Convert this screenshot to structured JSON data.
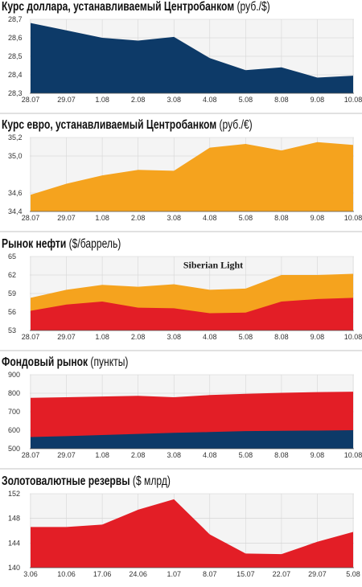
{
  "chart_data": [
    {
      "type": "area",
      "title": "Курс доллара, устанавливаемый Центробанком",
      "unit": "(руб./$)",
      "categories": [
        "28.07",
        "29.07",
        "1.08",
        "2.08",
        "3.08",
        "4.08",
        "5.08",
        "8.08",
        "9.08",
        "10.08"
      ],
      "yticks": [
        "28,3",
        "28,4",
        "28,5",
        "28,6",
        "28,7"
      ],
      "ylim": [
        28.3,
        28.7
      ],
      "series": [
        {
          "values": [
            28.68,
            28.64,
            28.6,
            28.585,
            28.605,
            28.49,
            28.425,
            28.44,
            28.385,
            28.395
          ],
          "color": "#0d3a68"
        }
      ],
      "grid": true
    },
    {
      "type": "area",
      "title": "Курс евро, устанавливаемый Центробанком",
      "unit": "(руб./€)",
      "categories": [
        "28.07",
        "29.07",
        "1.08",
        "2.08",
        "3.08",
        "4.08",
        "5.08",
        "8.08",
        "9.08",
        "10.08"
      ],
      "yticks": [
        "34,4",
        "34,6",
        "35,0",
        "35,2"
      ],
      "ytick_values": [
        34.4,
        34.6,
        35.0,
        35.2
      ],
      "ylim": [
        34.4,
        35.2
      ],
      "series": [
        {
          "values": [
            34.58,
            34.7,
            34.79,
            34.85,
            34.84,
            35.09,
            35.13,
            35.06,
            35.15,
            35.12
          ],
          "color": "#f5a31e"
        }
      ],
      "grid": true
    },
    {
      "type": "area",
      "title": "Рынок нефти",
      "unit": "($/баррель)",
      "categories": [
        "28.07",
        "29.07",
        "1.08",
        "2.08",
        "3.08",
        "4.08",
        "5.08",
        "8.08",
        "9.08",
        "10.08"
      ],
      "yticks": [
        "53",
        "56",
        "59",
        "62",
        "65"
      ],
      "ylim": [
        53,
        65
      ],
      "annotation": "Siberian Light",
      "series": [
        {
          "values": [
            58.3,
            59.6,
            60.4,
            60.1,
            60.5,
            59.6,
            59.8,
            62.0,
            62.0,
            62.2
          ],
          "color": "#f5a31e"
        },
        {
          "values": [
            56.2,
            57.2,
            57.7,
            56.7,
            56.6,
            55.8,
            55.9,
            57.7,
            58.1,
            58.3
          ],
          "color": "#e31e26"
        }
      ],
      "grid": true
    },
    {
      "type": "area",
      "title": "Фондовый рынок",
      "unit": "(пункты)",
      "categories": [
        "28.07",
        "29.07",
        "1.08",
        "2.08",
        "3.08",
        "4.08",
        "5.08",
        "8.08",
        "9.08",
        "10.08"
      ],
      "yticks": [
        "500",
        "600",
        "700",
        "800",
        "900"
      ],
      "ylim": [
        500,
        900
      ],
      "series": [
        {
          "values": [
            775,
            778,
            782,
            786,
            778,
            790,
            797,
            802,
            806,
            808
          ],
          "color": "#e31e26"
        },
        {
          "values": [
            563,
            568,
            574,
            580,
            586,
            590,
            595,
            597,
            598,
            600
          ],
          "color": "#0d3a68"
        }
      ],
      "grid": true
    },
    {
      "type": "area",
      "title": "Золотовалютные резервы",
      "unit": "($ млрд)",
      "categories": [
        "3.06",
        "10.06",
        "17.06",
        "24.06",
        "1.07",
        "8.07",
        "15.07",
        "22.07",
        "29.07",
        "5.08"
      ],
      "yticks": [
        "140",
        "144",
        "148",
        "152"
      ],
      "ylim": [
        140,
        152
      ],
      "series": [
        {
          "values": [
            146.6,
            146.6,
            147.0,
            149.4,
            151.1,
            145.4,
            142.3,
            142.2,
            144.2,
            145.8
          ],
          "color": "#e31e26"
        }
      ],
      "grid": true
    }
  ]
}
